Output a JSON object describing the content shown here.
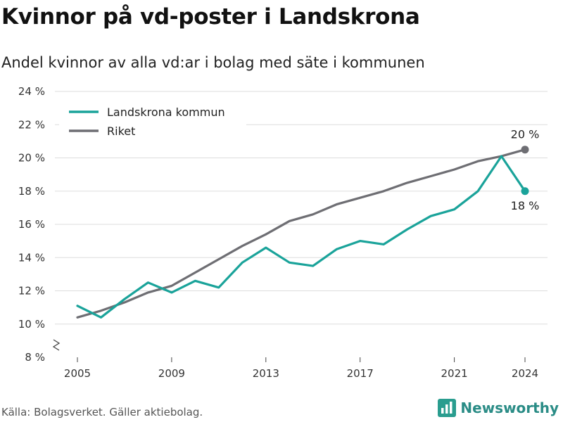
{
  "title": "Kvinnor på vd-poster i Landskrona",
  "subtitle": "Andel kvinnor av alla vd:ar i bolag med säte i kommunen",
  "source": "Källa: Bolagsverket. Gäller aktiebolag.",
  "brand": {
    "name": "Newsworthy",
    "icon": "bar-chart-logo-icon",
    "color": "#2a9d8f"
  },
  "colors": {
    "landskrona": "#1aa39a",
    "riket": "#6e6e73",
    "grid": "#dddddd"
  },
  "chart_data": {
    "type": "line",
    "x": [
      2005,
      2006,
      2007,
      2008,
      2009,
      2010,
      2011,
      2012,
      2013,
      2014,
      2015,
      2016,
      2017,
      2018,
      2019,
      2020,
      2021,
      2022,
      2023,
      2024
    ],
    "series": [
      {
        "name": "Landskrona kommun",
        "values": [
          11.1,
          10.4,
          11.5,
          12.5,
          11.9,
          12.6,
          12.2,
          13.7,
          14.6,
          13.7,
          13.5,
          14.5,
          15.0,
          14.8,
          15.7,
          16.5,
          16.9,
          18.0,
          20.1,
          18.0
        ],
        "end_label": "18 %"
      },
      {
        "name": "Riket",
        "values": [
          10.4,
          10.8,
          11.3,
          11.9,
          12.3,
          13.1,
          13.9,
          14.7,
          15.4,
          16.2,
          16.6,
          17.2,
          17.6,
          18.0,
          18.5,
          18.9,
          19.3,
          19.8,
          20.1,
          20.5
        ],
        "end_label": "20 %"
      }
    ],
    "x_ticks": [
      "2005",
      "2009",
      "2013",
      "2017",
      "2021",
      "2024"
    ],
    "y_ticks": [
      "8 %",
      "10 %",
      "12 %",
      "14 %",
      "16 %",
      "18 %",
      "20 %",
      "22 %",
      "24 %"
    ],
    "ylim": [
      8,
      24
    ],
    "xlim": [
      2005,
      2024
    ],
    "y_axis_break": true,
    "grid": "horizontal",
    "legend_position": "top-left"
  }
}
